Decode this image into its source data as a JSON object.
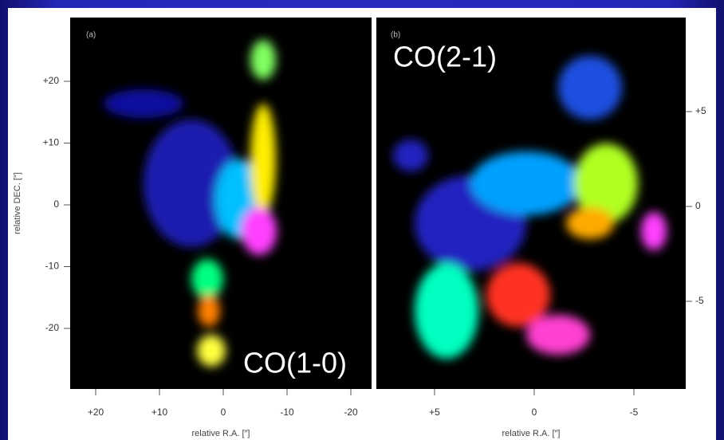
{
  "panels": [
    {
      "label": "(a)",
      "line": "CO(1-0)",
      "x_axis_label": "relative R.A. [″]",
      "y_axis_label": "relative DEC. [″]",
      "x_ticks": [
        "+20",
        "+10",
        "0",
        "-10",
        "-20"
      ],
      "y_ticks": [
        "+20",
        "+10",
        "0",
        "-10",
        "-20"
      ]
    },
    {
      "label": "(b)",
      "line": "CO(2-1)",
      "x_axis_label": "relative R.A. [″]",
      "x_ticks": [
        "+5",
        "0",
        "-5"
      ],
      "y_ticks": [
        "+5",
        "0",
        "-5"
      ]
    }
  ]
}
